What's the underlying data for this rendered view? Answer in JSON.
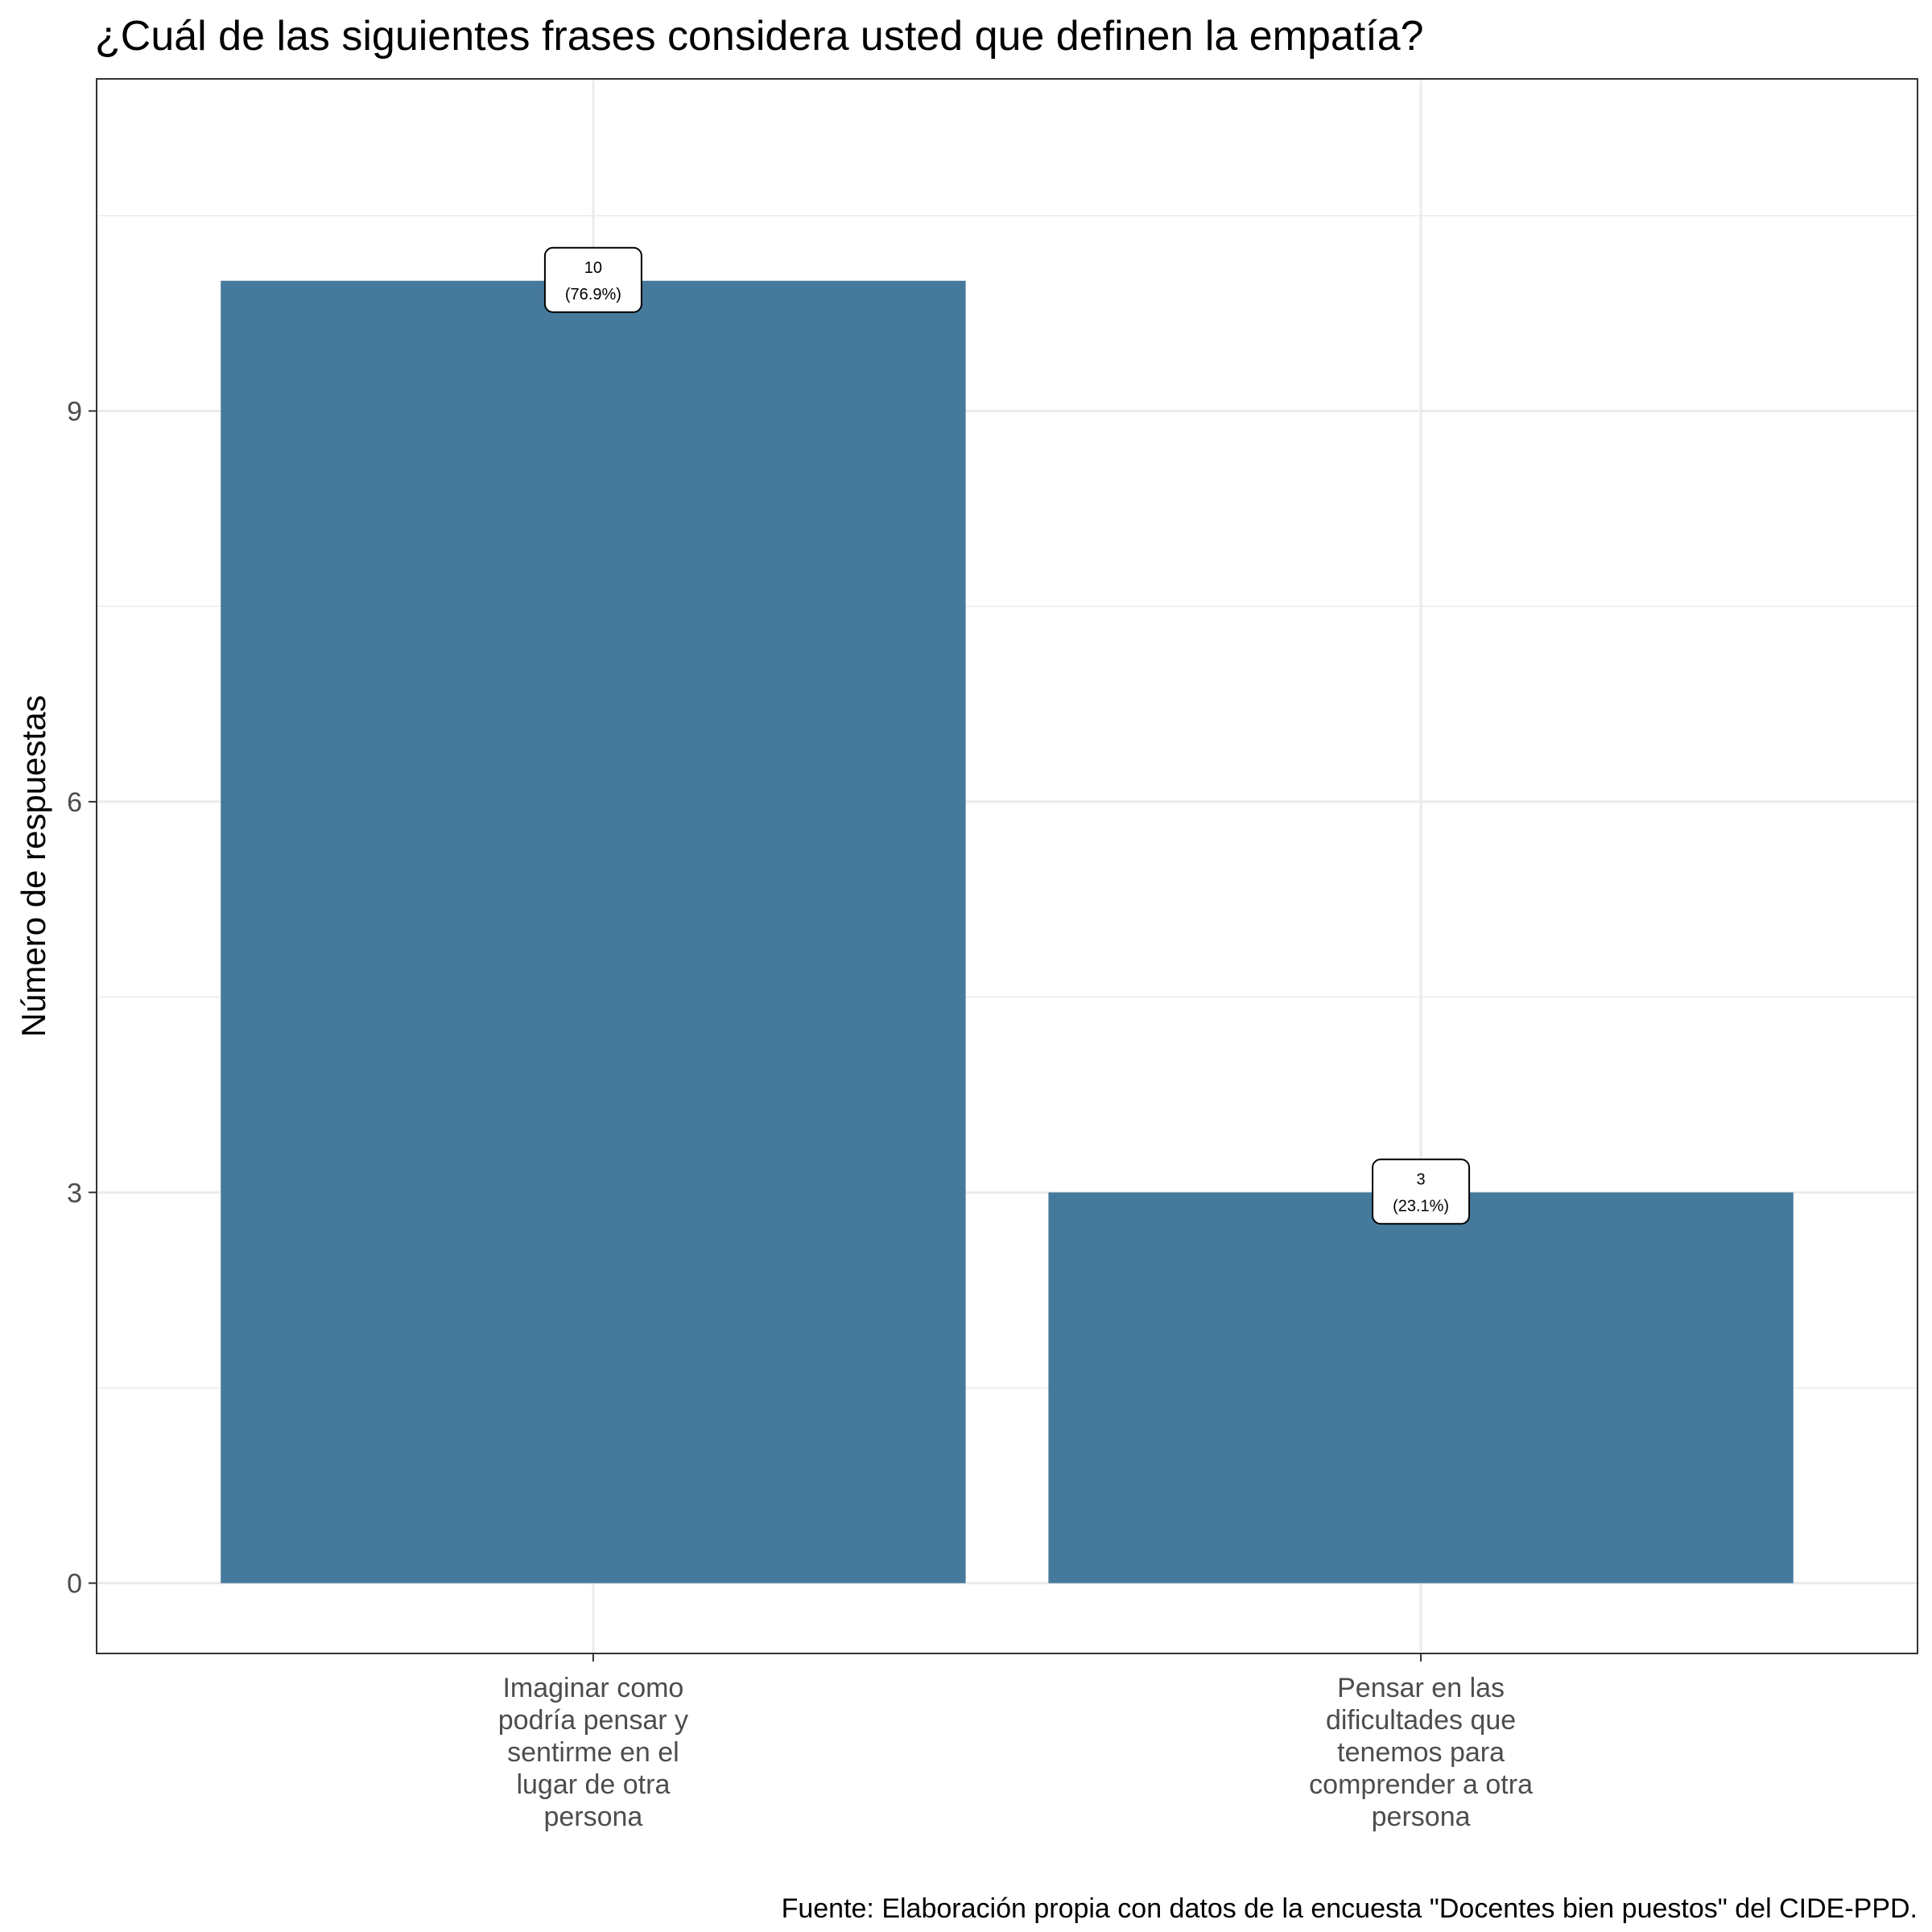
{
  "chart_data": {
    "type": "bar",
    "title": "¿Cuál de las siguientes frases considera usted que definen la empatía?",
    "xlabel": "",
    "ylabel": "Número de respuestas",
    "categories": [
      [
        "Imaginar como",
        "podría pensar y",
        "sentirme en el",
        "lugar de otra",
        "persona"
      ],
      [
        "Pensar en las",
        "dificultades que",
        "tenemos para",
        "comprender a otra",
        "persona"
      ]
    ],
    "values": [
      10,
      3
    ],
    "data_labels": [
      [
        "10",
        "(76.9%)"
      ],
      [
        "3",
        "(23.1%)"
      ]
    ],
    "yticks": [
      0,
      3,
      6,
      9
    ],
    "ylim": [
      -0.54,
      11.55
    ],
    "grid": true,
    "bar_color": "#467a9c",
    "caption": "Fuente: Elaboración propia con datos de la encuesta \"Docentes bien puestos\" del CIDE-PPD."
  }
}
